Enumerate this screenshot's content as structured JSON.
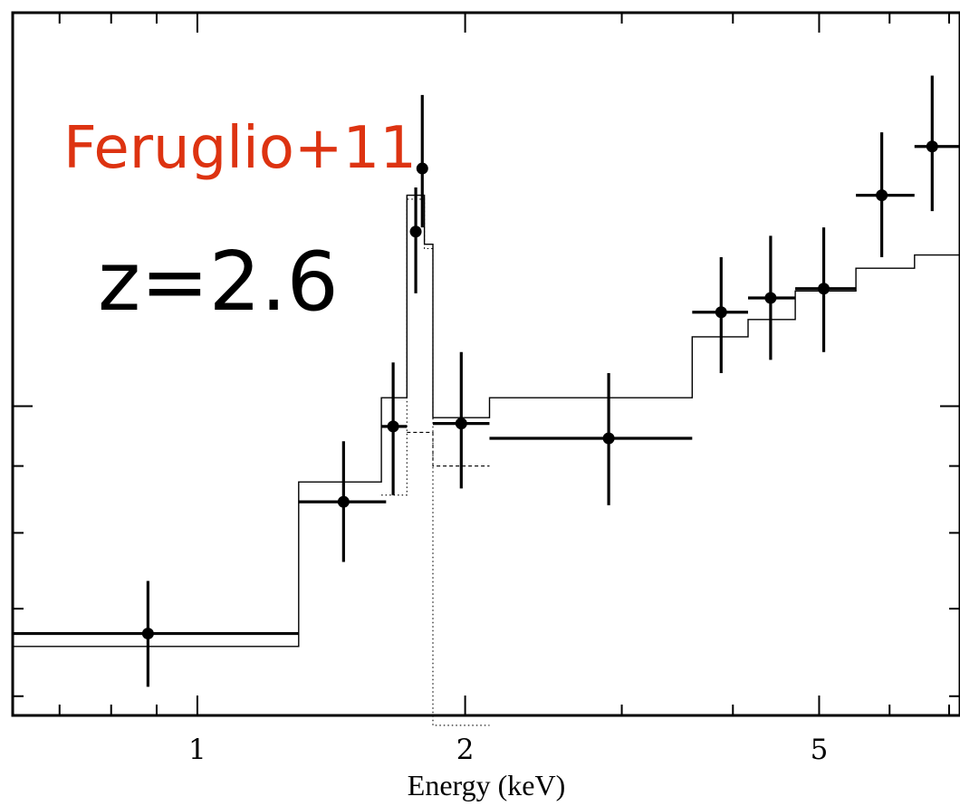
{
  "chart_data": {
    "type": "scatter",
    "xlabel": "Energy (keV)",
    "ylabel": "",
    "xscale": "log",
    "yscale": "log",
    "xlim": [
      0.62,
      7.2
    ],
    "ylim": [
      0.58,
      2.0
    ],
    "x_ticks": [
      1,
      2,
      5
    ],
    "x_tick_labels": [
      "1",
      "2",
      "5"
    ],
    "annotations": [
      {
        "text": "Feruglio+11",
        "color": "#dd3311"
      },
      {
        "text": "z=2.6",
        "color": "#000000"
      }
    ],
    "series": [
      {
        "type": "errorbar",
        "points": [
          {
            "x": 0.88,
            "xlo": 0.62,
            "xhi": 1.3,
            "y": 0.67,
            "ylo": 0.61,
            "yhi": 0.735
          },
          {
            "x": 1.46,
            "xlo": 1.3,
            "xhi": 1.63,
            "y": 0.845,
            "ylo": 0.76,
            "yhi": 0.94
          },
          {
            "x": 1.66,
            "xlo": 1.61,
            "xhi": 1.72,
            "y": 0.965,
            "ylo": 0.855,
            "yhi": 1.08
          },
          {
            "x": 1.76,
            "xlo": 1.76,
            "xhi": 1.76,
            "y": 1.36,
            "ylo": 1.22,
            "yhi": 1.47
          },
          {
            "x": 1.79,
            "xlo": 1.79,
            "xhi": 1.79,
            "y": 1.52,
            "ylo": 1.37,
            "yhi": 1.73
          },
          {
            "x": 1.98,
            "xlo": 1.84,
            "xhi": 2.13,
            "y": 0.97,
            "ylo": 0.865,
            "yhi": 1.1
          },
          {
            "x": 2.9,
            "xlo": 2.13,
            "xhi": 3.6,
            "y": 0.945,
            "ylo": 0.84,
            "yhi": 1.06
          },
          {
            "x": 3.88,
            "xlo": 3.6,
            "xhi": 4.16,
            "y": 1.18,
            "ylo": 1.06,
            "yhi": 1.3
          },
          {
            "x": 4.41,
            "xlo": 4.16,
            "xhi": 4.7,
            "y": 1.21,
            "ylo": 1.085,
            "yhi": 1.35
          },
          {
            "x": 5.06,
            "xlo": 4.7,
            "xhi": 5.5,
            "y": 1.23,
            "ylo": 1.1,
            "yhi": 1.37
          },
          {
            "x": 5.88,
            "xlo": 5.5,
            "xhi": 6.4,
            "y": 1.45,
            "ylo": 1.3,
            "yhi": 1.62
          },
          {
            "x": 6.7,
            "xlo": 6.4,
            "xhi": 7.2,
            "y": 1.58,
            "ylo": 1.41,
            "yhi": 1.79
          }
        ]
      },
      {
        "type": "step-model",
        "style": "solid",
        "edges": [
          0.62,
          1.3,
          1.61,
          1.72,
          1.8,
          1.84,
          2.13,
          3.6,
          4.16,
          4.7,
          5.5,
          6.4,
          7.2
        ],
        "values": [
          0.655,
          0.875,
          1.015,
          1.45,
          1.33,
          0.98,
          1.015,
          1.13,
          1.165,
          1.225,
          1.275,
          1.305
        ]
      },
      {
        "type": "step-model",
        "style": "dotted",
        "edges": [
          1.61,
          1.72,
          1.8,
          1.84,
          2.13
        ],
        "values": [
          0.855,
          1.44,
          1.32,
          0.57
        ]
      },
      {
        "type": "step-model",
        "style": "dashed",
        "edges": [
          1.72,
          1.8,
          1.84,
          2.13
        ],
        "values": [
          0.955,
          0.955,
          0.9
        ]
      }
    ]
  }
}
